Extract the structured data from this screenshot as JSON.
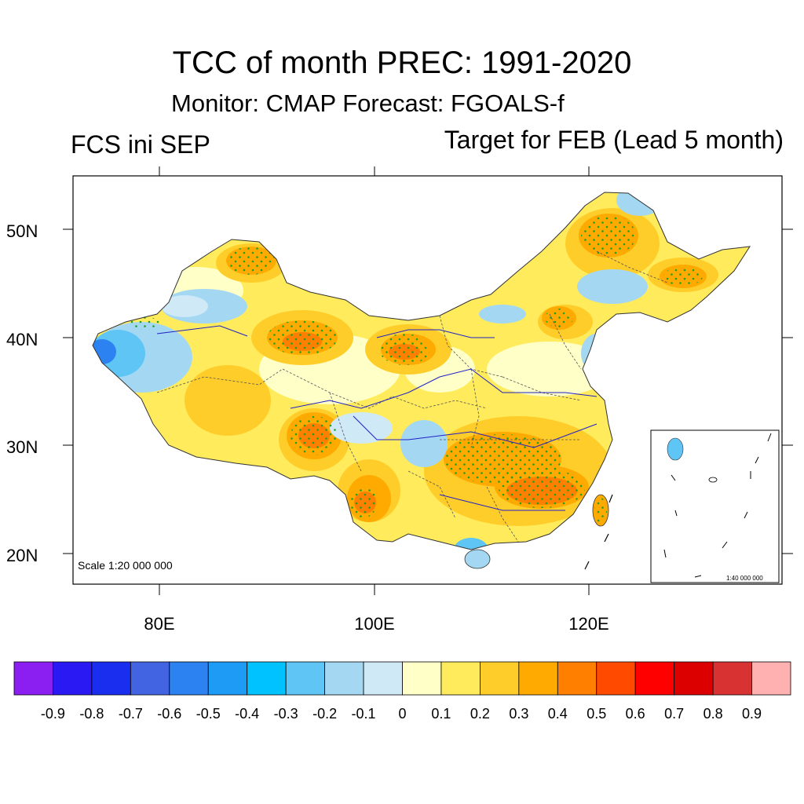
{
  "header": {
    "title": "TCC of month PREC: 1991-2020",
    "subtitle": "Monitor: CMAP   Forecast: FGOALS-f",
    "left_label": "FCS ini SEP",
    "right_label": "Target for FEB (Lead 5 month)"
  },
  "map": {
    "lat_ticks": [
      "50N",
      "40N",
      "30N",
      "20N"
    ],
    "lon_ticks": [
      "80E",
      "100E",
      "120E"
    ],
    "scale_label": "Scale 1:20 000 000",
    "inset_scale_label": "1:40 000 000"
  },
  "colorbar": {
    "colors": [
      "#8b1ef0",
      "#2a19f2",
      "#1a2ef0",
      "#4264e2",
      "#2c82f0",
      "#1e9bf5",
      "#00c2ff",
      "#5ec5f5",
      "#a4d8f2",
      "#cfe9f7",
      "#ffffc8",
      "#ffeb5c",
      "#ffcd2a",
      "#ffaa00",
      "#ff7f00",
      "#ff4a00",
      "#ff0000",
      "#dc0000",
      "#d83232",
      "#ffb0b0"
    ],
    "labels": [
      "-0.9",
      "-0.8",
      "-0.7",
      "-0.6",
      "-0.5",
      "-0.4",
      "-0.3",
      "-0.2",
      "-0.1",
      "0",
      "0.1",
      "0.2",
      "0.3",
      "0.4",
      "0.5",
      "0.6",
      "0.7",
      "0.8",
      "0.9"
    ]
  }
}
